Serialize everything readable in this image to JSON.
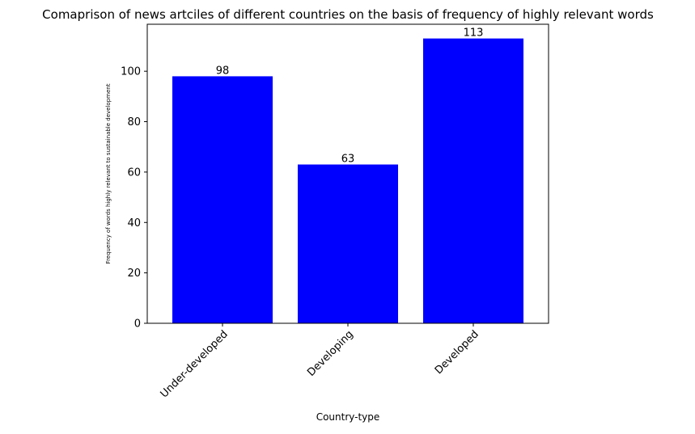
{
  "chart_data": {
    "type": "bar",
    "title": "Comaprison of news artciles of different countries on the basis of frequency of highly relevant words",
    "xlabel": "Country-type",
    "ylabel": "Frequency of words highly relevant to sustainable development",
    "categories": [
      "Under-developed",
      "Developing",
      "Developed"
    ],
    "values": [
      98,
      63,
      113
    ],
    "value_labels": [
      "98",
      "63",
      "113"
    ],
    "ylim": [
      0,
      118.65
    ],
    "yticks": [
      0,
      20,
      40,
      60,
      80,
      100
    ],
    "ytick_labels": [
      "0",
      "20",
      "40",
      "60",
      "80",
      "100"
    ],
    "bar_color": "#0000ff",
    "grid": false,
    "legend": "none"
  }
}
